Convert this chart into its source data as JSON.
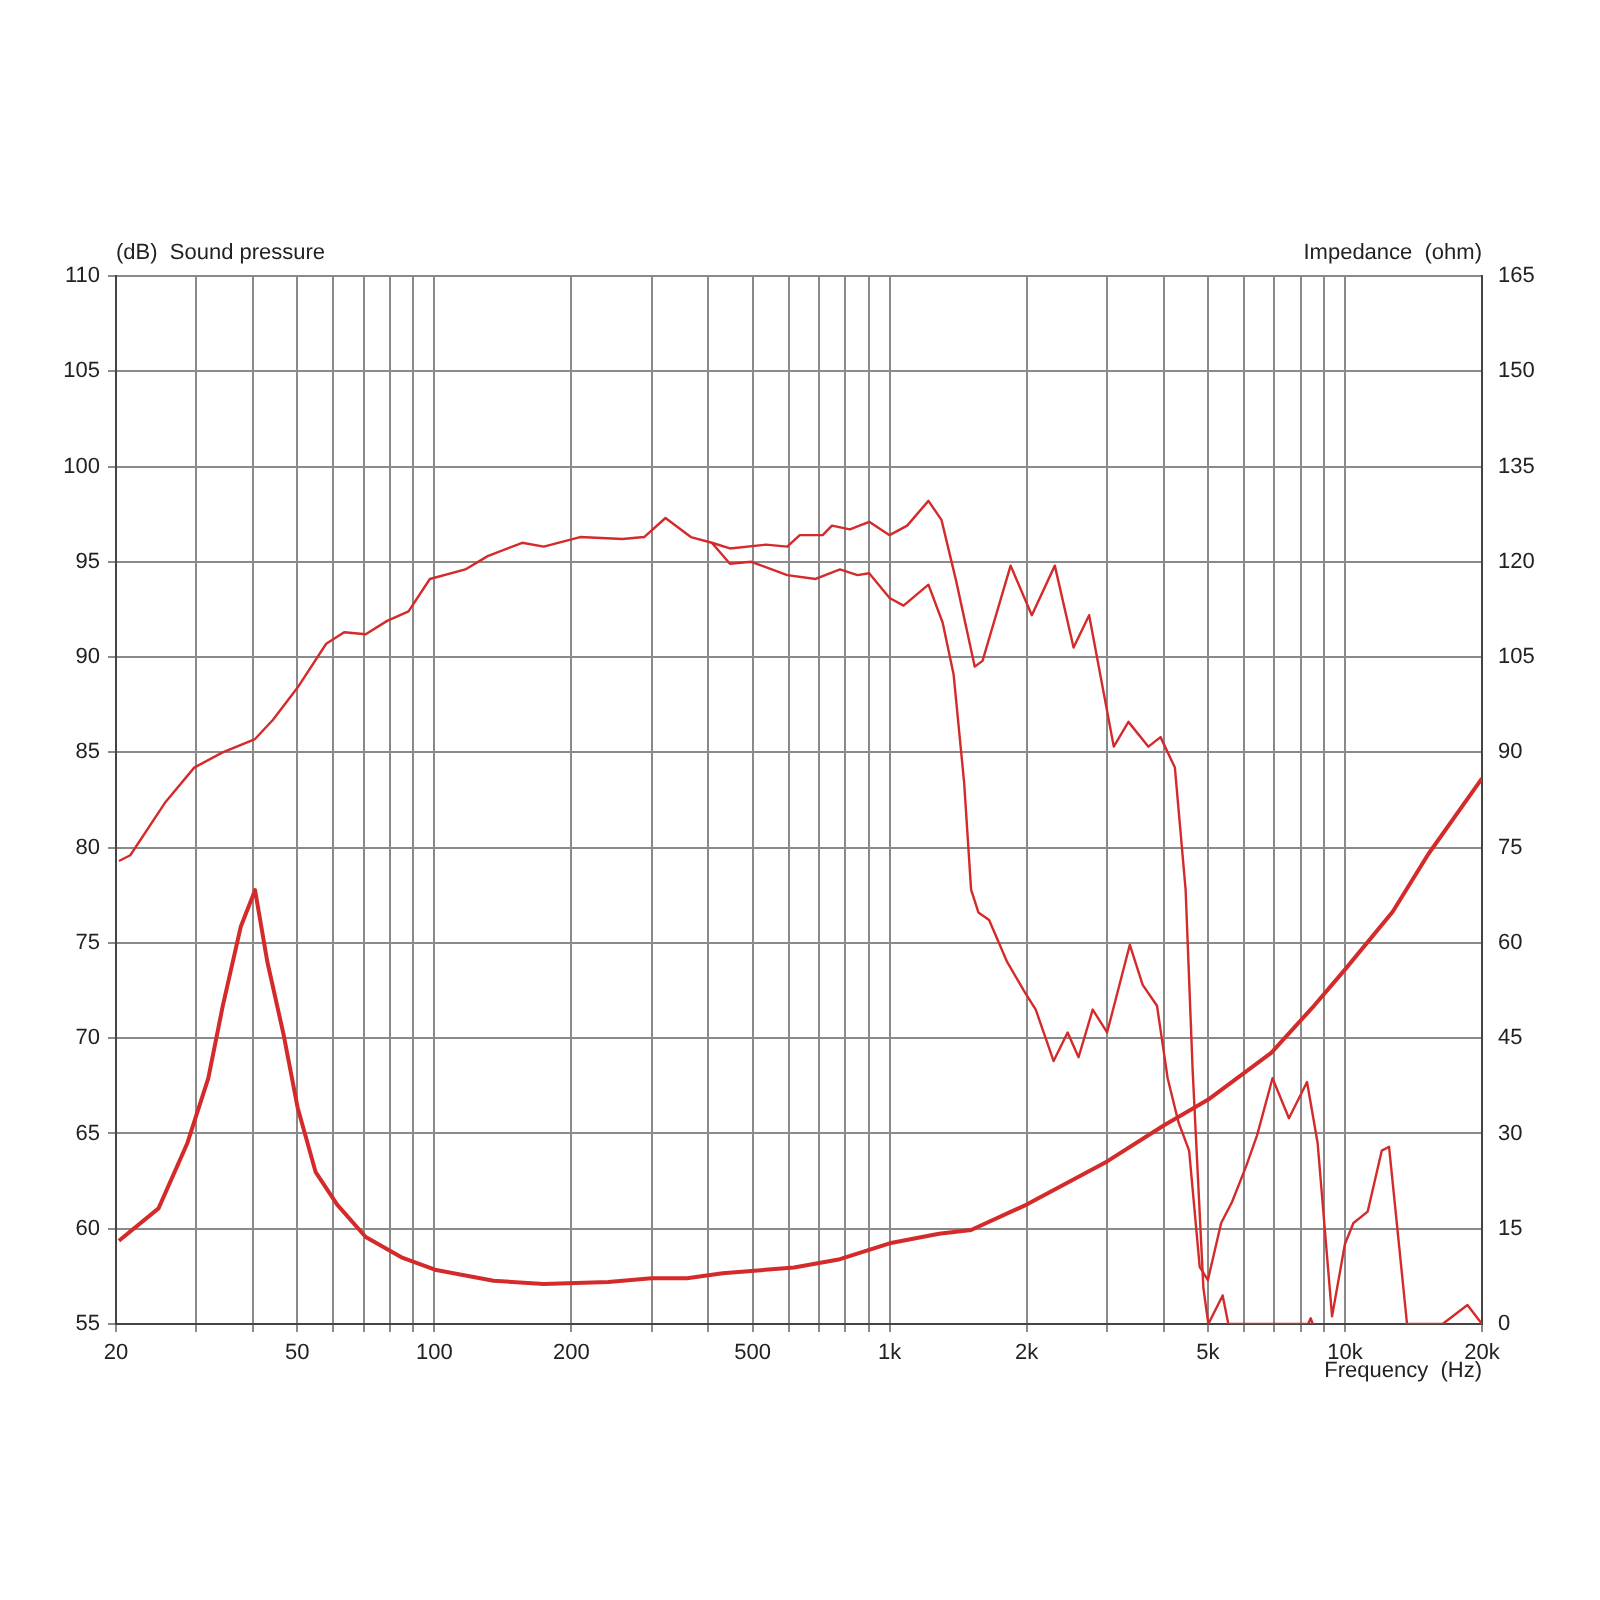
{
  "chart_data": {
    "type": "line",
    "ylabel": "(dB)  Sound pressure",
    "y2label": "Impedance  (ohm)",
    "xlabel": "Frequency  (Hz)",
    "log": "x",
    "grid": true,
    "legend": false,
    "marker": "none",
    "line_style": "solid",
    "xlim": [
      20,
      20000
    ],
    "xticks": [
      20,
      {
        "value": 30,
        "label": null
      },
      {
        "value": 40,
        "label": null
      },
      50,
      {
        "value": 60,
        "label": null
      },
      {
        "value": 70,
        "label": null
      },
      {
        "value": 80,
        "label": null
      },
      {
        "value": 90,
        "label": null
      },
      100,
      200,
      {
        "value": 300,
        "label": null
      },
      {
        "value": 400,
        "label": null
      },
      500,
      {
        "value": 600,
        "label": null
      },
      {
        "value": 700,
        "label": null
      },
      {
        "value": 800,
        "label": null
      },
      {
        "value": 900,
        "label": null
      },
      {
        "value": 1000,
        "label": "1k"
      },
      {
        "value": 2000,
        "label": "2k"
      },
      {
        "value": 3000,
        "label": null
      },
      {
        "value": 4000,
        "label": null
      },
      {
        "value": 5000,
        "label": "5k"
      },
      {
        "value": 6000,
        "label": null
      },
      {
        "value": 7000,
        "label": null
      },
      {
        "value": 8000,
        "label": null
      },
      {
        "value": 9000,
        "label": null
      },
      {
        "value": 10000,
        "label": "10k"
      },
      {
        "value": 20000,
        "label": "20k"
      }
    ],
    "ylim": [
      55,
      110
    ],
    "yticks": [
      55,
      60,
      65,
      70,
      75,
      80,
      85,
      90,
      95,
      100,
      105,
      110
    ],
    "y2lim": [
      0,
      165
    ],
    "y2ticks": [
      0,
      15,
      30,
      45,
      60,
      75,
      90,
      105,
      120,
      135,
      150,
      165
    ],
    "series": [
      {
        "color": "#d42a2a",
        "x": [
          20.3,
          21.5,
          25.7,
          29.7,
          34.3,
          40.4,
          44.2,
          50.1,
          57.9,
          63.4,
          70.7,
          78.8,
          87.8,
          97.8,
          117,
          131,
          156,
          174,
          209,
          259,
          289,
          322,
          366,
          407,
          446,
          535,
          596,
          635,
          713,
          747,
          818,
          902,
          1000,
          1093,
          1217,
          1300,
          1400,
          1538,
          1600,
          1844,
          2053,
          2306,
          2535,
          2743,
          3107,
          3346,
          3702,
          3936,
          4232,
          4468,
          4630,
          4888,
          5012,
          5388,
          5546,
          7000,
          8300,
          8408,
          8500
        ],
        "values": [
          79.3,
          79.6,
          82.4,
          84.2,
          85,
          85.7,
          86.7,
          88.4,
          90.7,
          91.3,
          91.2,
          91.9,
          92.4,
          94.1,
          94.6,
          95.3,
          96,
          95.8,
          96.3,
          96.2,
          96.3,
          97.3,
          96.3,
          96,
          95.7,
          95.9,
          95.8,
          96.4,
          96.4,
          96.9,
          96.7,
          97.1,
          96.4,
          96.9,
          98.2,
          97.2,
          94,
          89.5,
          89.8,
          94.8,
          92.2,
          94.8,
          90.5,
          92.2,
          85.3,
          86.6,
          85.3,
          85.8,
          84.2,
          77.8,
          68.3,
          56.9,
          55,
          56.5,
          55,
          55,
          55,
          55.3,
          55
        ]
      },
      {
        "color": "#d42a2a",
        "x": [
          407,
          446,
          497,
          596,
          688,
          778,
          850,
          902,
          1000,
          1073,
          1217,
          1308,
          1382,
          1458,
          1510,
          1567,
          1654,
          1812,
          1982,
          2094,
          2292,
          2460,
          2600,
          2793,
          3004,
          3370,
          3596,
          3866,
          4080,
          4308,
          4548,
          4798,
          5000,
          5348,
          5650,
          6072,
          6412,
          6934,
          7534,
          8256,
          8710,
          9370,
          10000,
          10440,
          11220,
          12050,
          12500,
          13690,
          16390,
          18580,
          20000
        ],
        "values": [
          96,
          94.9,
          95,
          94.3,
          94.1,
          94.6,
          94.3,
          94.4,
          93.1,
          92.7,
          93.8,
          91.8,
          89.1,
          83.4,
          77.8,
          76.6,
          76.2,
          74,
          72.4,
          71.5,
          68.8,
          70.3,
          69,
          71.5,
          70.3,
          74.9,
          72.8,
          71.7,
          67.9,
          65.6,
          64.1,
          58,
          57.3,
          60.3,
          61.4,
          63.3,
          64.9,
          67.9,
          65.8,
          67.7,
          64.5,
          55.4,
          59.2,
          60.3,
          60.9,
          64.1,
          64.3,
          55,
          55,
          56,
          55
        ]
      },
      {
        "color": "#d42a2a",
        "axis": "y2",
        "x": [
          20.3,
          24.8,
          28.7,
          31.9,
          34.3,
          37.6,
          40.4,
          43,
          46.7,
          50.1,
          54.9,
          61.2,
          70.7,
          84.7,
          101,
          135,
          174,
          241,
          300,
          359,
          430,
          617,
          778,
          1000,
          1284,
          1510,
          2000,
          3004,
          4008,
          5000,
          6888,
          8552,
          10000,
          12730,
          15250,
          20000
        ],
        "values": [
          13.1,
          18.2,
          28.5,
          38.7,
          50,
          62.6,
          68.3,
          57,
          45.5,
          34.1,
          23.9,
          18.8,
          13.7,
          10.5,
          8.5,
          6.8,
          6.3,
          6.6,
          7.2,
          7.2,
          8,
          8.9,
          10.2,
          12.7,
          14.2,
          14.8,
          18.8,
          25.6,
          31.3,
          35.3,
          42.7,
          50.1,
          55.8,
          64.9,
          74,
          85.9
        ]
      }
    ]
  }
}
